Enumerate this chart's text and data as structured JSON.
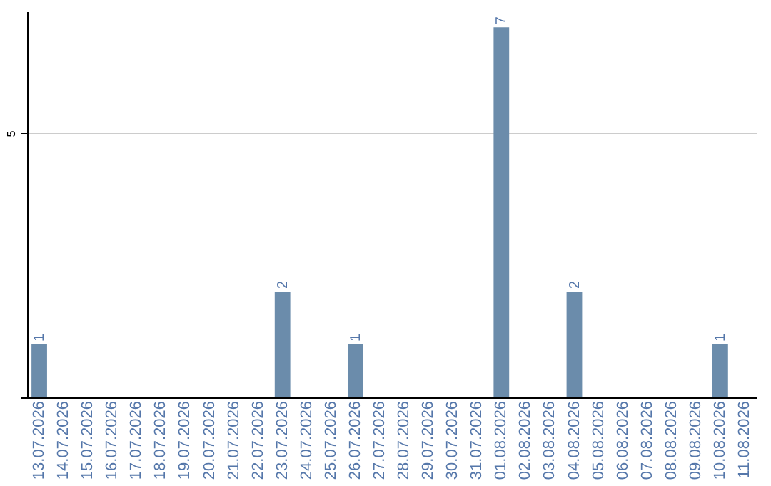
{
  "chart_data": {
    "type": "bar",
    "categories": [
      "13.07.2026",
      "14.07.2026",
      "15.07.2026",
      "16.07.2026",
      "17.07.2026",
      "18.07.2026",
      "19.07.2026",
      "20.07.2026",
      "21.07.2026",
      "22.07.2026",
      "23.07.2026",
      "24.07.2026",
      "25.07.2026",
      "26.07.2026",
      "27.07.2026",
      "28.07.2026",
      "29.07.2026",
      "30.07.2026",
      "31.07.2026",
      "01.08.2026",
      "02.08.2026",
      "03.08.2026",
      "04.08.2026",
      "05.08.2026",
      "06.08.2026",
      "07.08.2026",
      "08.08.2026",
      "09.08.2026",
      "10.08.2026",
      "11.08.2026"
    ],
    "values": [
      1,
      0,
      0,
      0,
      0,
      0,
      0,
      0,
      0,
      0,
      2,
      0,
      0,
      1,
      0,
      0,
      0,
      0,
      0,
      7,
      0,
      0,
      2,
      0,
      0,
      0,
      0,
      0,
      1,
      0
    ],
    "value_labels": [
      "1",
      null,
      null,
      null,
      null,
      null,
      null,
      null,
      null,
      null,
      "2",
      null,
      null,
      "1",
      null,
      null,
      null,
      null,
      null,
      "7",
      null,
      null,
      "2",
      null,
      null,
      null,
      null,
      null,
      "1",
      null
    ],
    "color": "#6b8cab",
    "ylim": [
      0,
      7.3
    ],
    "yticks": [
      {
        "value": 0,
        "label": null
      },
      5
    ],
    "grid": "y"
  }
}
